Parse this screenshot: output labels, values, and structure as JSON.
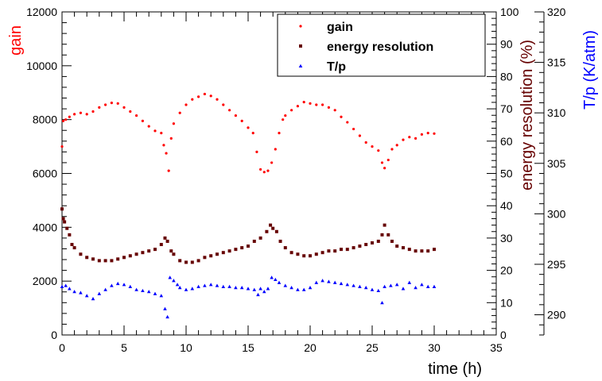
{
  "chart_data": {
    "type": "scatter",
    "title": "",
    "xlabel": "time (h)",
    "xlim": [
      0,
      35
    ],
    "x_ticks": [
      0,
      5,
      10,
      15,
      20,
      25,
      30,
      35
    ],
    "grid": false,
    "legend": "top-right",
    "axes": {
      "left": {
        "label": "gain",
        "label_color": "#ff0000",
        "lim": [
          0,
          12000
        ],
        "ticks": [
          0,
          2000,
          4000,
          6000,
          8000,
          10000,
          12000
        ]
      },
      "right1": {
        "label": "energy resolution (%)",
        "label_color": "#660000",
        "lim": [
          0,
          100
        ],
        "ticks": [
          0,
          10,
          20,
          30,
          40,
          50,
          60,
          70,
          80,
          90,
          100
        ]
      },
      "right2": {
        "label": "T/p (K/atm)",
        "label_color": "#0000ff",
        "lim": [
          288,
          320
        ],
        "ticks": [
          290,
          295,
          300,
          305,
          310,
          315,
          320
        ]
      }
    },
    "series": [
      {
        "name": "gain",
        "axis": "left",
        "marker": "circle",
        "color": "#ff0000",
        "points": [
          [
            0,
            7000
          ],
          [
            0.1,
            7950
          ],
          [
            0.3,
            8000
          ],
          [
            0.6,
            8100
          ],
          [
            1,
            8200
          ],
          [
            1.5,
            8250
          ],
          [
            2,
            8200
          ],
          [
            2.5,
            8300
          ],
          [
            3,
            8450
          ],
          [
            3.5,
            8550
          ],
          [
            4,
            8620
          ],
          [
            4.5,
            8600
          ],
          [
            5,
            8450
          ],
          [
            5.5,
            8300
          ],
          [
            6,
            8150
          ],
          [
            6.5,
            7950
          ],
          [
            7,
            7750
          ],
          [
            7.5,
            7580
          ],
          [
            8,
            7500
          ],
          [
            8.2,
            7050
          ],
          [
            8.4,
            6750
          ],
          [
            8.6,
            6100
          ],
          [
            8.8,
            7300
          ],
          [
            9,
            7850
          ],
          [
            9.5,
            8250
          ],
          [
            10,
            8550
          ],
          [
            10.5,
            8750
          ],
          [
            11,
            8850
          ],
          [
            11.5,
            8950
          ],
          [
            12,
            8880
          ],
          [
            12.5,
            8750
          ],
          [
            13,
            8550
          ],
          [
            13.5,
            8350
          ],
          [
            14,
            8150
          ],
          [
            14.5,
            7950
          ],
          [
            15,
            7700
          ],
          [
            15.4,
            7500
          ],
          [
            15.7,
            6800
          ],
          [
            16,
            6150
          ],
          [
            16.3,
            6050
          ],
          [
            16.6,
            6100
          ],
          [
            16.9,
            6400
          ],
          [
            17.2,
            6900
          ],
          [
            17.5,
            7500
          ],
          [
            17.8,
            8000
          ],
          [
            18,
            8150
          ],
          [
            18.5,
            8350
          ],
          [
            19,
            8500
          ],
          [
            19.5,
            8650
          ],
          [
            20,
            8600
          ],
          [
            20.5,
            8550
          ],
          [
            21,
            8550
          ],
          [
            21.5,
            8450
          ],
          [
            22,
            8350
          ],
          [
            22.5,
            8100
          ],
          [
            23,
            7900
          ],
          [
            23.5,
            7650
          ],
          [
            24,
            7400
          ],
          [
            24.5,
            7150
          ],
          [
            25,
            7000
          ],
          [
            25.5,
            6850
          ],
          [
            25.8,
            6400
          ],
          [
            26,
            6200
          ],
          [
            26.3,
            6500
          ],
          [
            26.6,
            6900
          ],
          [
            27,
            7050
          ],
          [
            27.5,
            7250
          ],
          [
            28,
            7350
          ],
          [
            28.5,
            7300
          ],
          [
            29,
            7450
          ],
          [
            29.5,
            7500
          ],
          [
            30,
            7480
          ]
        ]
      },
      {
        "name": "energy resolution",
        "axis": "right1",
        "marker": "square",
        "color": "#660000",
        "points": [
          [
            0,
            39
          ],
          [
            0.1,
            36
          ],
          [
            0.2,
            35
          ],
          [
            0.4,
            33
          ],
          [
            0.6,
            31
          ],
          [
            0.8,
            28
          ],
          [
            1,
            27
          ],
          [
            1.5,
            25
          ],
          [
            2,
            24
          ],
          [
            2.5,
            23.5
          ],
          [
            3,
            23
          ],
          [
            3.5,
            23
          ],
          [
            4,
            23
          ],
          [
            4.5,
            23.5
          ],
          [
            5,
            24
          ],
          [
            5.5,
            24.5
          ],
          [
            6,
            25
          ],
          [
            6.5,
            25.5
          ],
          [
            7,
            26
          ],
          [
            7.5,
            26.5
          ],
          [
            8,
            28
          ],
          [
            8.3,
            30
          ],
          [
            8.5,
            29
          ],
          [
            8.8,
            26
          ],
          [
            9,
            25
          ],
          [
            9.5,
            23
          ],
          [
            10,
            22.5
          ],
          [
            10.5,
            22.5
          ],
          [
            11,
            23
          ],
          [
            11.5,
            24
          ],
          [
            12,
            24.5
          ],
          [
            12.5,
            25
          ],
          [
            13,
            25.5
          ],
          [
            13.5,
            26
          ],
          [
            14,
            26.5
          ],
          [
            14.5,
            27
          ],
          [
            15,
            27.5
          ],
          [
            15.5,
            29
          ],
          [
            16,
            30
          ],
          [
            16.5,
            32
          ],
          [
            16.8,
            34
          ],
          [
            17,
            33
          ],
          [
            17.3,
            32
          ],
          [
            17.6,
            29
          ],
          [
            18,
            27
          ],
          [
            18.5,
            25.5
          ],
          [
            19,
            25
          ],
          [
            19.5,
            24.5
          ],
          [
            20,
            24.5
          ],
          [
            20.5,
            25
          ],
          [
            21,
            25.5
          ],
          [
            21.5,
            26
          ],
          [
            22,
            26
          ],
          [
            22.5,
            26.5
          ],
          [
            23,
            26.5
          ],
          [
            23.5,
            27
          ],
          [
            24,
            27.5
          ],
          [
            24.5,
            28
          ],
          [
            25,
            28.5
          ],
          [
            25.5,
            29
          ],
          [
            25.8,
            31
          ],
          [
            26,
            34
          ],
          [
            26.3,
            31
          ],
          [
            26.6,
            29
          ],
          [
            27,
            27.5
          ],
          [
            27.5,
            27
          ],
          [
            28,
            26.5
          ],
          [
            28.5,
            26
          ],
          [
            29,
            26
          ],
          [
            29.5,
            26
          ],
          [
            30,
            26.5
          ]
        ]
      },
      {
        "name": "T/p",
        "axis": "right2",
        "marker": "triangle",
        "color": "#0000ff",
        "points": [
          [
            0,
            292.8
          ],
          [
            0.3,
            292.9
          ],
          [
            0.6,
            292.6
          ],
          [
            1,
            292.3
          ],
          [
            1.5,
            292.2
          ],
          [
            2,
            291.9
          ],
          [
            2.5,
            291.6
          ],
          [
            3,
            292.1
          ],
          [
            3.5,
            292.5
          ],
          [
            4,
            292.9
          ],
          [
            4.5,
            293.1
          ],
          [
            5,
            293.0
          ],
          [
            5.5,
            292.8
          ],
          [
            6,
            292.5
          ],
          [
            6.5,
            292.4
          ],
          [
            7,
            292.3
          ],
          [
            7.5,
            292.1
          ],
          [
            8,
            291.9
          ],
          [
            8.3,
            290.6
          ],
          [
            8.5,
            289.8
          ],
          [
            8.7,
            293.7
          ],
          [
            9,
            293.4
          ],
          [
            9.3,
            293.0
          ],
          [
            9.5,
            292.7
          ],
          [
            10,
            292.5
          ],
          [
            10.5,
            292.6
          ],
          [
            11,
            292.8
          ],
          [
            11.5,
            292.9
          ],
          [
            12,
            293.0
          ],
          [
            12.5,
            292.9
          ],
          [
            13,
            292.8
          ],
          [
            13.5,
            292.8
          ],
          [
            14,
            292.7
          ],
          [
            14.5,
            292.7
          ],
          [
            15,
            292.6
          ],
          [
            15.5,
            292.5
          ],
          [
            15.8,
            292.0
          ],
          [
            16,
            292.6
          ],
          [
            16.3,
            292.3
          ],
          [
            16.6,
            292.6
          ],
          [
            16.9,
            293.7
          ],
          [
            17.2,
            293.5
          ],
          [
            17.5,
            293.2
          ],
          [
            18,
            292.9
          ],
          [
            18.5,
            292.7
          ],
          [
            19,
            292.5
          ],
          [
            19.5,
            292.5
          ],
          [
            20,
            292.7
          ],
          [
            20.5,
            293.2
          ],
          [
            21,
            293.4
          ],
          [
            21.5,
            293.3
          ],
          [
            22,
            293.2
          ],
          [
            22.5,
            293.1
          ],
          [
            23,
            293.0
          ],
          [
            23.5,
            292.9
          ],
          [
            24,
            292.8
          ],
          [
            24.5,
            292.7
          ],
          [
            25,
            292.5
          ],
          [
            25.5,
            292.4
          ],
          [
            25.8,
            291.2
          ],
          [
            26,
            292.8
          ],
          [
            26.5,
            292.9
          ],
          [
            27,
            293.0
          ],
          [
            27.5,
            292.6
          ],
          [
            28,
            293.2
          ],
          [
            28.5,
            292.7
          ],
          [
            29,
            293.0
          ],
          [
            29.5,
            292.8
          ],
          [
            30,
            292.8
          ]
        ]
      }
    ]
  }
}
